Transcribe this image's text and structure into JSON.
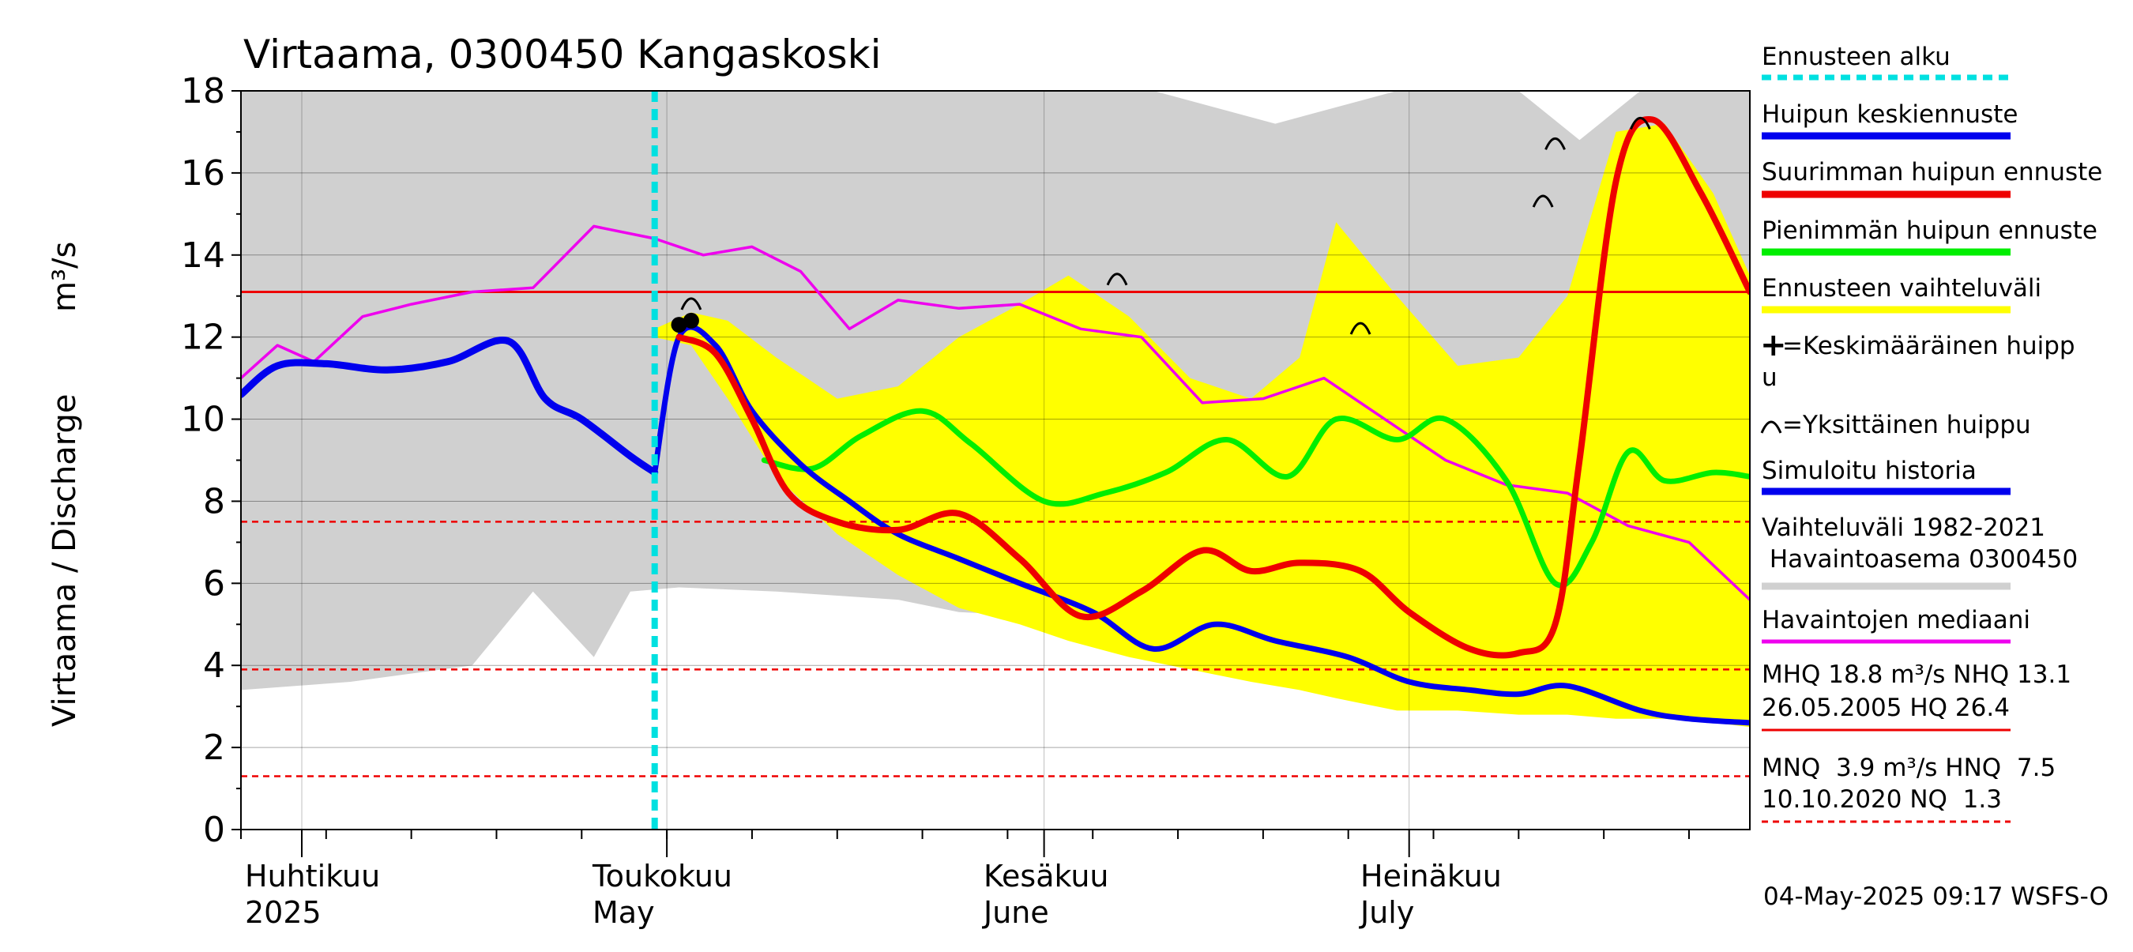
{
  "chart_data": {
    "type": "line",
    "title": "Virtaama, 0300450 Kangaskoski",
    "ylabel_fi": "Virtaama / Discharge",
    "ylabel_unit": "m³/s",
    "ylim": [
      0,
      18
    ],
    "yticks": [
      "0",
      "2",
      "4",
      "6",
      "8",
      "10",
      "12",
      "14",
      "16",
      "18"
    ],
    "xlim": [
      "2025-03-27",
      "2025-07-29"
    ],
    "month_labels": [
      {
        "fi": "Huhtikuu",
        "en": "2025",
        "date": "2025-04-01"
      },
      {
        "fi": "Toukokuu",
        "en": "May",
        "date": "2025-05-01"
      },
      {
        "fi": "Kesäkuu",
        "en": "June",
        "date": "2025-06-01"
      },
      {
        "fi": "Heinäkuu",
        "en": "July",
        "date": "2025-07-01"
      }
    ],
    "forecast_start": "2025-04-30",
    "reference_lines": [
      {
        "name": "NHQ",
        "value": 13.1,
        "style": "solid",
        "color": "#ee0000"
      },
      {
        "name": "HNQ",
        "value": 7.5,
        "style": "dashed",
        "color": "#ee0000"
      },
      {
        "name": "MNQ",
        "value": 3.9,
        "style": "dashed",
        "color": "#ee0000"
      },
      {
        "name": "NQ",
        "value": 1.3,
        "style": "dashed",
        "color": "#ee0000"
      }
    ],
    "historical_range": {
      "name": "Vaihteluväli 1982-2021 Havaintoasema 0300450",
      "color": "#d0d0d0",
      "x": [
        "2025-03-27",
        "2025-04-05",
        "2025-04-15",
        "2025-04-20",
        "2025-04-25",
        "2025-04-28",
        "2025-05-02",
        "2025-05-10",
        "2025-05-20",
        "2025-05-25",
        "2025-06-01",
        "2025-06-10",
        "2025-06-20",
        "2025-06-30",
        "2025-07-10",
        "2025-07-15",
        "2025-07-20",
        "2025-07-29"
      ],
      "high": [
        18,
        18,
        18,
        18,
        18,
        18,
        18,
        18,
        18,
        18,
        18,
        18,
        17.2,
        18,
        18,
        16.8,
        18,
        18
      ],
      "low": [
        3.4,
        3.6,
        4.0,
        5.8,
        4.2,
        5.8,
        5.9,
        5.8,
        5.6,
        5.3,
        5.2,
        5.0,
        4.5,
        4.2,
        4.0,
        3.2,
        3.0,
        2.8
      ]
    },
    "forecast_range": {
      "name": "Ennusteen vaihteluväli",
      "color": "#ffff00",
      "x": [
        "2025-04-30",
        "2025-05-03",
        "2025-05-06",
        "2025-05-10",
        "2025-05-15",
        "2025-05-20",
        "2025-05-25",
        "2025-05-30",
        "2025-06-03",
        "2025-06-08",
        "2025-06-13",
        "2025-06-18",
        "2025-06-22",
        "2025-06-25",
        "2025-06-30",
        "2025-07-05",
        "2025-07-10",
        "2025-07-14",
        "2025-07-18",
        "2025-07-22",
        "2025-07-26",
        "2025-07-29"
      ],
      "high": [
        12.2,
        12.6,
        12.4,
        11.5,
        10.5,
        10.8,
        12.0,
        12.8,
        13.5,
        12.5,
        11.0,
        10.5,
        11.5,
        14.8,
        13.0,
        11.3,
        11.5,
        13.0,
        17.0,
        17.2,
        15.5,
        13.5
      ],
      "low": [
        12.0,
        11.8,
        10.5,
        8.6,
        7.2,
        6.2,
        5.4,
        5.0,
        4.6,
        4.2,
        3.9,
        3.6,
        3.4,
        3.2,
        2.9,
        2.9,
        2.8,
        2.8,
        2.7,
        2.7,
        2.6,
        2.5
      ]
    },
    "series": [
      {
        "name": "Havaintojen mediaani",
        "color": "#ee00ee",
        "x": [
          "2025-03-27",
          "2025-03-30",
          "2025-04-02",
          "2025-04-06",
          "2025-04-10",
          "2025-04-15",
          "2025-04-20",
          "2025-04-25",
          "2025-04-30",
          "2025-05-04",
          "2025-05-08",
          "2025-05-12",
          "2025-05-16",
          "2025-05-20",
          "2025-05-25",
          "2025-05-30",
          "2025-06-04",
          "2025-06-09",
          "2025-06-14",
          "2025-06-19",
          "2025-06-24",
          "2025-06-29",
          "2025-07-04",
          "2025-07-09",
          "2025-07-14",
          "2025-07-19",
          "2025-07-24",
          "2025-07-29"
        ],
        "y": [
          11.0,
          11.8,
          11.4,
          12.5,
          12.8,
          13.1,
          13.2,
          14.7,
          14.4,
          14.0,
          14.2,
          13.6,
          12.2,
          12.9,
          12.7,
          12.8,
          12.2,
          12.0,
          10.4,
          10.5,
          11.0,
          10.0,
          9.0,
          8.4,
          8.2,
          7.4,
          7.0,
          5.6
        ]
      },
      {
        "name": "Simuloitu historia",
        "color": "#0000ee",
        "x": [
          "2025-03-27",
          "2025-03-30",
          "2025-04-03",
          "2025-04-08",
          "2025-04-13",
          "2025-04-18",
          "2025-04-21",
          "2025-04-24",
          "2025-04-28",
          "2025-04-30"
        ],
        "y": [
          10.6,
          11.3,
          11.35,
          11.2,
          11.4,
          11.9,
          10.5,
          10.0,
          9.1,
          8.7
        ]
      },
      {
        "name": "Huipun keskiennuste",
        "color": "#0000ee",
        "x": [
          "2025-04-30",
          "2025-05-02",
          "2025-05-05",
          "2025-05-08",
          "2025-05-12",
          "2025-05-16",
          "2025-05-20",
          "2025-05-25",
          "2025-05-30",
          "2025-06-05",
          "2025-06-10",
          "2025-06-15",
          "2025-06-20",
          "2025-06-26",
          "2025-07-01",
          "2025-07-06",
          "2025-07-10",
          "2025-07-14",
          "2025-07-20",
          "2025-07-24",
          "2025-07-29"
        ],
        "y": [
          8.7,
          12.0,
          11.8,
          10.2,
          8.9,
          8.0,
          7.2,
          6.6,
          6.0,
          5.3,
          4.4,
          5.0,
          4.6,
          4.2,
          3.6,
          3.4,
          3.3,
          3.5,
          2.9,
          2.7,
          2.6
        ]
      },
      {
        "name": "Suurimman huipun ennuste",
        "color": "#ee0000",
        "x": [
          "2025-05-02",
          "2025-05-05",
          "2025-05-08",
          "2025-05-11",
          "2025-05-15",
          "2025-05-20",
          "2025-05-25",
          "2025-05-30",
          "2025-06-04",
          "2025-06-09",
          "2025-06-14",
          "2025-06-18",
          "2025-06-22",
          "2025-06-27",
          "2025-07-01",
          "2025-07-06",
          "2025-07-10",
          "2025-07-13",
          "2025-07-15",
          "2025-07-18",
          "2025-07-21",
          "2025-07-25",
          "2025-07-29"
        ],
        "y": [
          12.0,
          11.6,
          10.0,
          8.2,
          7.5,
          7.3,
          7.7,
          6.6,
          5.2,
          5.8,
          6.8,
          6.3,
          6.5,
          6.3,
          5.3,
          4.4,
          4.3,
          5.0,
          9.0,
          15.8,
          17.3,
          15.5,
          13.1
        ]
      },
      {
        "name": "Pienimmän huipun ennuste",
        "color": "#00ee00",
        "x": [
          "2025-05-09",
          "2025-05-13",
          "2025-05-17",
          "2025-05-22",
          "2025-05-26",
          "2025-06-01",
          "2025-06-06",
          "2025-06-11",
          "2025-06-16",
          "2025-06-21",
          "2025-06-25",
          "2025-06-30",
          "2025-07-04",
          "2025-07-09",
          "2025-07-13",
          "2025-07-16",
          "2025-07-19",
          "2025-07-22",
          "2025-07-26",
          "2025-07-29"
        ],
        "y": [
          9.0,
          8.8,
          9.6,
          10.2,
          9.4,
          8.0,
          8.2,
          8.7,
          9.5,
          8.6,
          10.0,
          9.5,
          10.0,
          8.5,
          6.0,
          7.0,
          9.2,
          8.5,
          8.7,
          8.6
        ]
      }
    ],
    "single_peaks": [
      {
        "x": "2025-05-03",
        "y": 12.9
      },
      {
        "x": "2025-06-07",
        "y": 13.5
      },
      {
        "x": "2025-06-27",
        "y": 12.3
      },
      {
        "x": "2025-07-12",
        "y": 15.4
      },
      {
        "x": "2025-07-13",
        "y": 16.8
      },
      {
        "x": "2025-07-20",
        "y": 17.3
      }
    ],
    "mean_peaks": [
      {
        "x": "2025-05-02",
        "y": 12.3
      },
      {
        "x": "2025-05-03",
        "y": 12.4
      }
    ]
  },
  "legend": {
    "forecast_start": {
      "label": "Ennusteen alku",
      "color": "#00e0e0"
    },
    "mean_forecast": {
      "label": "Huipun keskiennuste",
      "color": "#0000ee"
    },
    "max_forecast": {
      "label": "Suurimman huipun ennuste",
      "color": "#ee0000"
    },
    "min_forecast": {
      "label": "Pienimmän huipun ennuste",
      "color": "#00ee00"
    },
    "forecast_range": {
      "label": "Ennusteen vaihteluväli",
      "color": "#ffff00"
    },
    "mean_peak": {
      "line1": "=Keskimääräinen huipp",
      "line2": "u"
    },
    "single_peak": {
      "label": "=Yksittäinen huippu"
    },
    "sim_history": {
      "label": "Simuloitu historia",
      "color": "#0000ee"
    },
    "hist_range": {
      "line1": "Vaihteluväli 1982-2021",
      "line2": " Havaintoasema 0300450",
      "color": "#d0d0d0"
    },
    "median": {
      "label": "Havaintojen mediaani",
      "color": "#ee00ee"
    },
    "stats_high": {
      "line1": "MHQ 18.8 m³/s NHQ 13.1",
      "line2": "26.05.2005 HQ 26.4",
      "color": "#ee0000"
    },
    "stats_low": {
      "line1": "MNQ  3.9 m³/s HNQ  7.5",
      "line2": "10.10.2020 NQ  1.3",
      "color": "#ee0000"
    }
  },
  "timestamp": "04-May-2025 09:17 WSFS-O"
}
